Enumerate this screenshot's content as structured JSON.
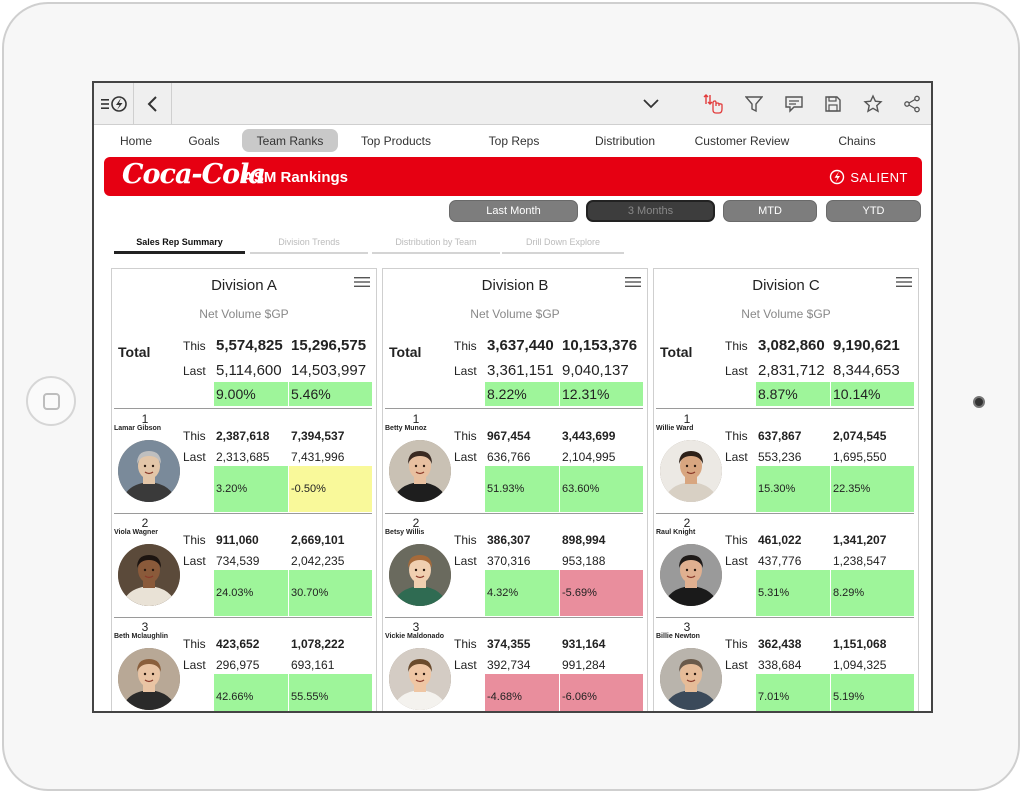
{
  "nav_tabs": [
    "Home",
    "Goals",
    "Team Ranks",
    "Top Products",
    "Top Reps",
    "Distribution",
    "Customer Review",
    "Chains"
  ],
  "active_tab": "Team Ranks",
  "banner": {
    "logo": "Coca-Cola",
    "title": "ASM Rankings",
    "brand": "SALIENT"
  },
  "periods": [
    "Last Month",
    "3 Months",
    "MTD",
    "YTD"
  ],
  "active_period": "3 Months",
  "subtabs": [
    "Sales Rep Summary",
    "Division Trends",
    "Distribution by Team",
    "Drill Down Explore"
  ],
  "labels": {
    "this": "This",
    "last": "Last",
    "total": "Total"
  },
  "colors": {
    "green": "#9ef59a",
    "yellow": "#f9f99a",
    "red": "#e98e9d",
    "brand_red": "#e60012"
  },
  "divisions": [
    {
      "name": "Division A",
      "metric": "Net Volume $GP",
      "total": {
        "this": [
          "5,574,825",
          "15,296,575"
        ],
        "last": [
          "5,114,600",
          "14,503,997"
        ],
        "pct": [
          [
            "9.00%",
            "green"
          ],
          [
            "5.46%",
            "green"
          ]
        ]
      },
      "reps": [
        {
          "rank": "1",
          "name": "Lamar Gibson",
          "this": [
            "2,387,618",
            "7,394,537"
          ],
          "last": [
            "2,313,685",
            "7,431,996"
          ],
          "pct": [
            [
              "3.20%",
              "green"
            ],
            [
              "-0.50%",
              "yellow"
            ]
          ]
        },
        {
          "rank": "2",
          "name": "Viola Wagner",
          "this": [
            "911,060",
            "2,669,101"
          ],
          "last": [
            "734,539",
            "2,042,235"
          ],
          "pct": [
            [
              "24.03%",
              "green"
            ],
            [
              "30.70%",
              "green"
            ]
          ]
        },
        {
          "rank": "3",
          "name": "Beth Mclaughlin",
          "this": [
            "423,652",
            "1,078,222"
          ],
          "last": [
            "296,975",
            "693,161"
          ],
          "pct": [
            [
              "42.66%",
              "green"
            ],
            [
              "55.55%",
              "green"
            ]
          ]
        }
      ]
    },
    {
      "name": "Division B",
      "metric": "Net Volume $GP",
      "total": {
        "this": [
          "3,637,440",
          "10,153,376"
        ],
        "last": [
          "3,361,151",
          "9,040,137"
        ],
        "pct": [
          [
            "8.22%",
            "green"
          ],
          [
            "12.31%",
            "green"
          ]
        ]
      },
      "reps": [
        {
          "rank": "1",
          "name": "Betty Munoz",
          "this": [
            "967,454",
            "3,443,699"
          ],
          "last": [
            "636,766",
            "2,104,995"
          ],
          "pct": [
            [
              "51.93%",
              "green"
            ],
            [
              "63.60%",
              "green"
            ]
          ]
        },
        {
          "rank": "2",
          "name": "Betsy Willis",
          "this": [
            "386,307",
            "898,994"
          ],
          "last": [
            "370,316",
            "953,188"
          ],
          "pct": [
            [
              "4.32%",
              "green"
            ],
            [
              "-5.69%",
              "red"
            ]
          ]
        },
        {
          "rank": "3",
          "name": "Vickie Maldonado",
          "this": [
            "374,355",
            "931,164"
          ],
          "last": [
            "392,734",
            "991,284"
          ],
          "pct": [
            [
              "-4.68%",
              "red"
            ],
            [
              "-6.06%",
              "red"
            ]
          ]
        }
      ]
    },
    {
      "name": "Division C",
      "metric": "Net Volume $GP",
      "total": {
        "this": [
          "3,082,860",
          "9,190,621"
        ],
        "last": [
          "2,831,712",
          "8,344,653"
        ],
        "pct": [
          [
            "8.87%",
            "green"
          ],
          [
            "10.14%",
            "green"
          ]
        ]
      },
      "reps": [
        {
          "rank": "1",
          "name": "Willie Ward",
          "this": [
            "637,867",
            "2,074,545"
          ],
          "last": [
            "553,236",
            "1,695,550"
          ],
          "pct": [
            [
              "15.30%",
              "green"
            ],
            [
              "22.35%",
              "green"
            ]
          ]
        },
        {
          "rank": "2",
          "name": "Raul Knight",
          "this": [
            "461,022",
            "1,341,207"
          ],
          "last": [
            "437,776",
            "1,238,547"
          ],
          "pct": [
            [
              "5.31%",
              "green"
            ],
            [
              "8.29%",
              "green"
            ]
          ]
        },
        {
          "rank": "3",
          "name": "Billie Newton",
          "this": [
            "362,438",
            "1,151,068"
          ],
          "last": [
            "338,684",
            "1,094,325"
          ],
          "pct": [
            [
              "7.01%",
              "green"
            ],
            [
              "5.19%",
              "green"
            ]
          ]
        }
      ]
    }
  ]
}
